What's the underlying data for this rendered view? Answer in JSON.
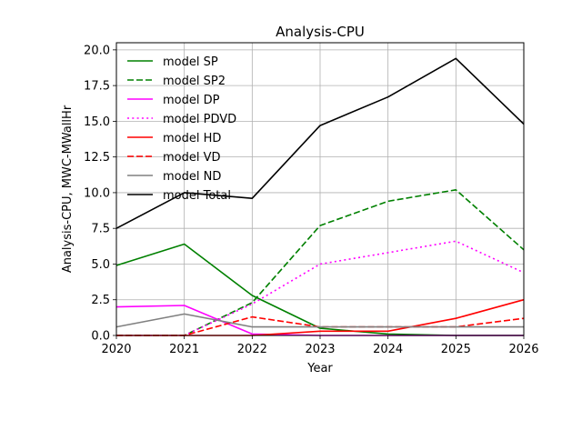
{
  "chart_data": {
    "type": "line",
    "title": "Analysis-CPU",
    "xlabel": "Year",
    "ylabel": "Analysis-CPU, MWC-MWallHr",
    "xlim": [
      2020,
      2026
    ],
    "ylim": [
      0,
      20.5
    ],
    "xticks": [
      2020,
      2021,
      2022,
      2023,
      2024,
      2025,
      2026
    ],
    "xtick_labels": [
      "2020",
      "2021",
      "2022",
      "2023",
      "2024",
      "2025",
      "2026"
    ],
    "yticks": [
      0,
      2.5,
      5,
      7.5,
      10,
      12.5,
      15,
      17.5,
      20
    ],
    "ytick_labels": [
      "0.0",
      "2.5",
      "5.0",
      "7.5",
      "10.0",
      "12.5",
      "15.0",
      "17.5",
      "20.0"
    ],
    "grid": true,
    "legend_position": "top-left",
    "x": [
      2020,
      2021,
      2022,
      2023,
      2024,
      2025,
      2026
    ],
    "series": [
      {
        "name": "model SP",
        "color": "#008000",
        "dash": "solid",
        "values": [
          4.9,
          6.4,
          2.8,
          0.5,
          0.1,
          0.0,
          0.0
        ]
      },
      {
        "name": "model SP2",
        "color": "#008000",
        "dash": "dashed",
        "values": [
          0.0,
          0.0,
          2.3,
          7.7,
          9.4,
          10.2,
          6.0
        ]
      },
      {
        "name": "model DP",
        "color": "#ff00ff",
        "dash": "solid",
        "values": [
          2.0,
          2.1,
          0.1,
          0.0,
          0.0,
          0.0,
          0.0
        ]
      },
      {
        "name": "model PDVD",
        "color": "#ff00ff",
        "dash": "dotted",
        "values": [
          0.0,
          0.0,
          2.2,
          5.0,
          5.8,
          6.6,
          4.4
        ]
      },
      {
        "name": "model HD",
        "color": "#ff0000",
        "dash": "solid",
        "values": [
          0.0,
          0.0,
          0.0,
          0.3,
          0.3,
          1.2,
          2.5
        ]
      },
      {
        "name": "model VD",
        "color": "#ff0000",
        "dash": "dashed",
        "values": [
          0.0,
          0.0,
          1.3,
          0.6,
          0.6,
          0.6,
          1.2
        ]
      },
      {
        "name": "model ND",
        "color": "#808080",
        "dash": "solid",
        "values": [
          0.6,
          1.5,
          0.6,
          0.6,
          0.6,
          0.6,
          0.6
        ]
      },
      {
        "name": "model Total",
        "color": "#000000",
        "dash": "solid",
        "values": [
          7.5,
          10.0,
          9.6,
          14.7,
          16.7,
          19.4,
          14.8
        ]
      }
    ]
  }
}
